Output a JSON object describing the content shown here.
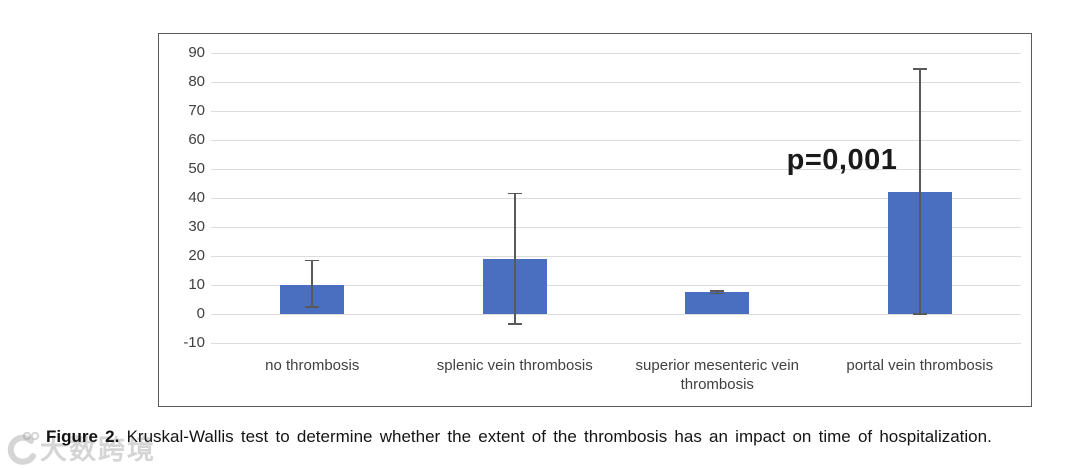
{
  "chart_data": {
    "type": "bar",
    "title": "",
    "xlabel": "",
    "ylabel": "",
    "categories": [
      "no thrombosis",
      "splenic vein thrombosis",
      "superior mesenteric vein thrombosis",
      "portal vein thrombosis"
    ],
    "values": [
      10,
      19,
      7.5,
      42
    ],
    "error_low": [
      2.5,
      -3.5,
      7,
      0
    ],
    "error_high": [
      18.5,
      41.5,
      8,
      84.5
    ],
    "yticks": [
      90,
      80,
      70,
      60,
      50,
      40,
      30,
      20,
      10,
      0,
      -10
    ],
    "ylim": [
      -10,
      95
    ],
    "grid": true,
    "legend": false,
    "bar_color": "#4a6fc0",
    "error_color": "#595959",
    "gridline_color": "#dcdcdc",
    "annotation": {
      "text": "p=0,001",
      "near_category": "portal vein thrombosis"
    }
  },
  "caption": {
    "label": "Figure 2.",
    "text": "Kruskal-Wallis test to determine whether the extent of the thrombosis has an impact on time of hospitalization."
  },
  "watermark": {
    "text": "大数跨境",
    "icon": "circular-arrow-100-logo"
  }
}
